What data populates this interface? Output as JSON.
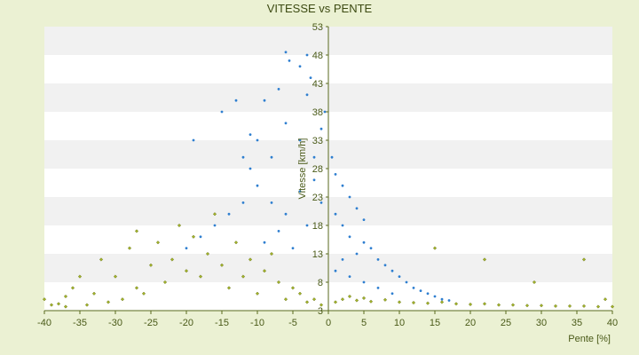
{
  "chart_data": {
    "type": "scatter",
    "title": "VITESSE vs PENTE",
    "xlabel": "Pente [%]",
    "ylabel": "Vitesse [km/h]",
    "xlim": [
      -40,
      40
    ],
    "ylim": [
      3,
      53
    ],
    "x_ticks": [
      -40,
      -35,
      -30,
      -25,
      -20,
      -15,
      -10,
      -5,
      0,
      5,
      10,
      15,
      20,
      25,
      30,
      35,
      40
    ],
    "y_ticks": [
      3,
      8,
      13,
      18,
      23,
      28,
      33,
      38,
      43,
      48,
      53
    ],
    "grid": "horizontal bands",
    "legend": "none",
    "series": [
      {
        "color": "#2f7fd0",
        "marker": "dot",
        "points": [
          [
            -6,
            48.5
          ],
          [
            -5.5,
            47
          ],
          [
            -3,
            48
          ],
          [
            -4,
            46
          ],
          [
            -2.5,
            44
          ],
          [
            -13,
            40
          ],
          [
            -15,
            38
          ],
          [
            -9,
            40
          ],
          [
            -7,
            42
          ],
          [
            -3,
            41
          ],
          [
            -19,
            33
          ],
          [
            -11,
            34
          ],
          [
            -8,
            30
          ],
          [
            -6,
            36
          ],
          [
            -4,
            33
          ],
          [
            -2,
            30
          ],
          [
            -1,
            35
          ],
          [
            1,
            27
          ],
          [
            2,
            25
          ],
          [
            3,
            23
          ],
          [
            4,
            21
          ],
          [
            5,
            19
          ],
          [
            5,
            15
          ],
          [
            6,
            14
          ],
          [
            7,
            12
          ],
          [
            8,
            11
          ],
          [
            9,
            10
          ],
          [
            10,
            9
          ],
          [
            11,
            8
          ],
          [
            12,
            7
          ],
          [
            13,
            6.5
          ],
          [
            14,
            6
          ],
          [
            15,
            5.5
          ],
          [
            16,
            5
          ],
          [
            17,
            4.8
          ],
          [
            1,
            20
          ],
          [
            2,
            18
          ],
          [
            3,
            16
          ],
          [
            4,
            13
          ],
          [
            2,
            12
          ],
          [
            1,
            10
          ],
          [
            3,
            9
          ],
          [
            5,
            8
          ],
          [
            7,
            7
          ],
          [
            9,
            6
          ],
          [
            -10,
            25
          ],
          [
            -12,
            22
          ],
          [
            -14,
            20
          ],
          [
            -8,
            22
          ],
          [
            -6,
            20
          ],
          [
            -4,
            24
          ],
          [
            -2,
            26
          ],
          [
            -16,
            18
          ],
          [
            -18,
            16
          ],
          [
            -20,
            14
          ],
          [
            -9,
            15
          ],
          [
            -7,
            17
          ],
          [
            -5,
            14
          ],
          [
            -3,
            18
          ],
          [
            -11,
            28
          ],
          [
            -12,
            30
          ],
          [
            -10,
            33
          ],
          [
            -1,
            22
          ],
          [
            0.5,
            30
          ],
          [
            -0.5,
            38
          ]
        ]
      },
      {
        "color": "#a3b42a",
        "marker": "diamond",
        "points": [
          [
            -40,
            5
          ],
          [
            -39,
            4
          ],
          [
            -38,
            4.2
          ],
          [
            -37,
            5.5
          ],
          [
            -36,
            7
          ],
          [
            -35,
            9
          ],
          [
            -34,
            4
          ],
          [
            -33,
            6
          ],
          [
            -32,
            12
          ],
          [
            -31,
            4.5
          ],
          [
            -30,
            9
          ],
          [
            -29,
            5
          ],
          [
            -28,
            14
          ],
          [
            -27,
            7
          ],
          [
            -26,
            6
          ],
          [
            -25,
            11
          ],
          [
            -24,
            15
          ],
          [
            -23,
            8
          ],
          [
            -22,
            12
          ],
          [
            -21,
            18
          ],
          [
            -20,
            10
          ],
          [
            -19,
            16
          ],
          [
            -18,
            9
          ],
          [
            -17,
            13
          ],
          [
            -16,
            20
          ],
          [
            -15,
            11
          ],
          [
            -14,
            7
          ],
          [
            -13,
            15
          ],
          [
            -12,
            9
          ],
          [
            -11,
            12
          ],
          [
            -10,
            6
          ],
          [
            -9,
            10
          ],
          [
            -8,
            13
          ],
          [
            -7,
            8
          ],
          [
            -6,
            5
          ],
          [
            -5,
            7
          ],
          [
            -4,
            6
          ],
          [
            -3,
            4.5
          ],
          [
            -2,
            5
          ],
          [
            -1,
            4
          ],
          [
            1,
            4.5
          ],
          [
            2,
            5
          ],
          [
            3,
            5.5
          ],
          [
            4,
            4.8
          ],
          [
            5,
            5.2
          ],
          [
            6,
            4.6
          ],
          [
            8,
            4.9
          ],
          [
            10,
            4.5
          ],
          [
            12,
            4.4
          ],
          [
            14,
            4.3
          ],
          [
            16,
            4.5
          ],
          [
            18,
            4.2
          ],
          [
            20,
            4.1
          ],
          [
            22,
            4.2
          ],
          [
            24,
            4
          ],
          [
            26,
            4
          ],
          [
            28,
            3.9
          ],
          [
            30,
            3.9
          ],
          [
            32,
            3.8
          ],
          [
            34,
            3.8
          ],
          [
            36,
            3.8
          ],
          [
            38,
            3.7
          ],
          [
            40,
            3.7
          ],
          [
            15,
            14
          ],
          [
            22,
            12
          ],
          [
            29,
            8
          ],
          [
            36,
            12
          ],
          [
            39,
            5
          ],
          [
            -37,
            3.7
          ],
          [
            -27,
            17
          ]
        ]
      }
    ]
  }
}
